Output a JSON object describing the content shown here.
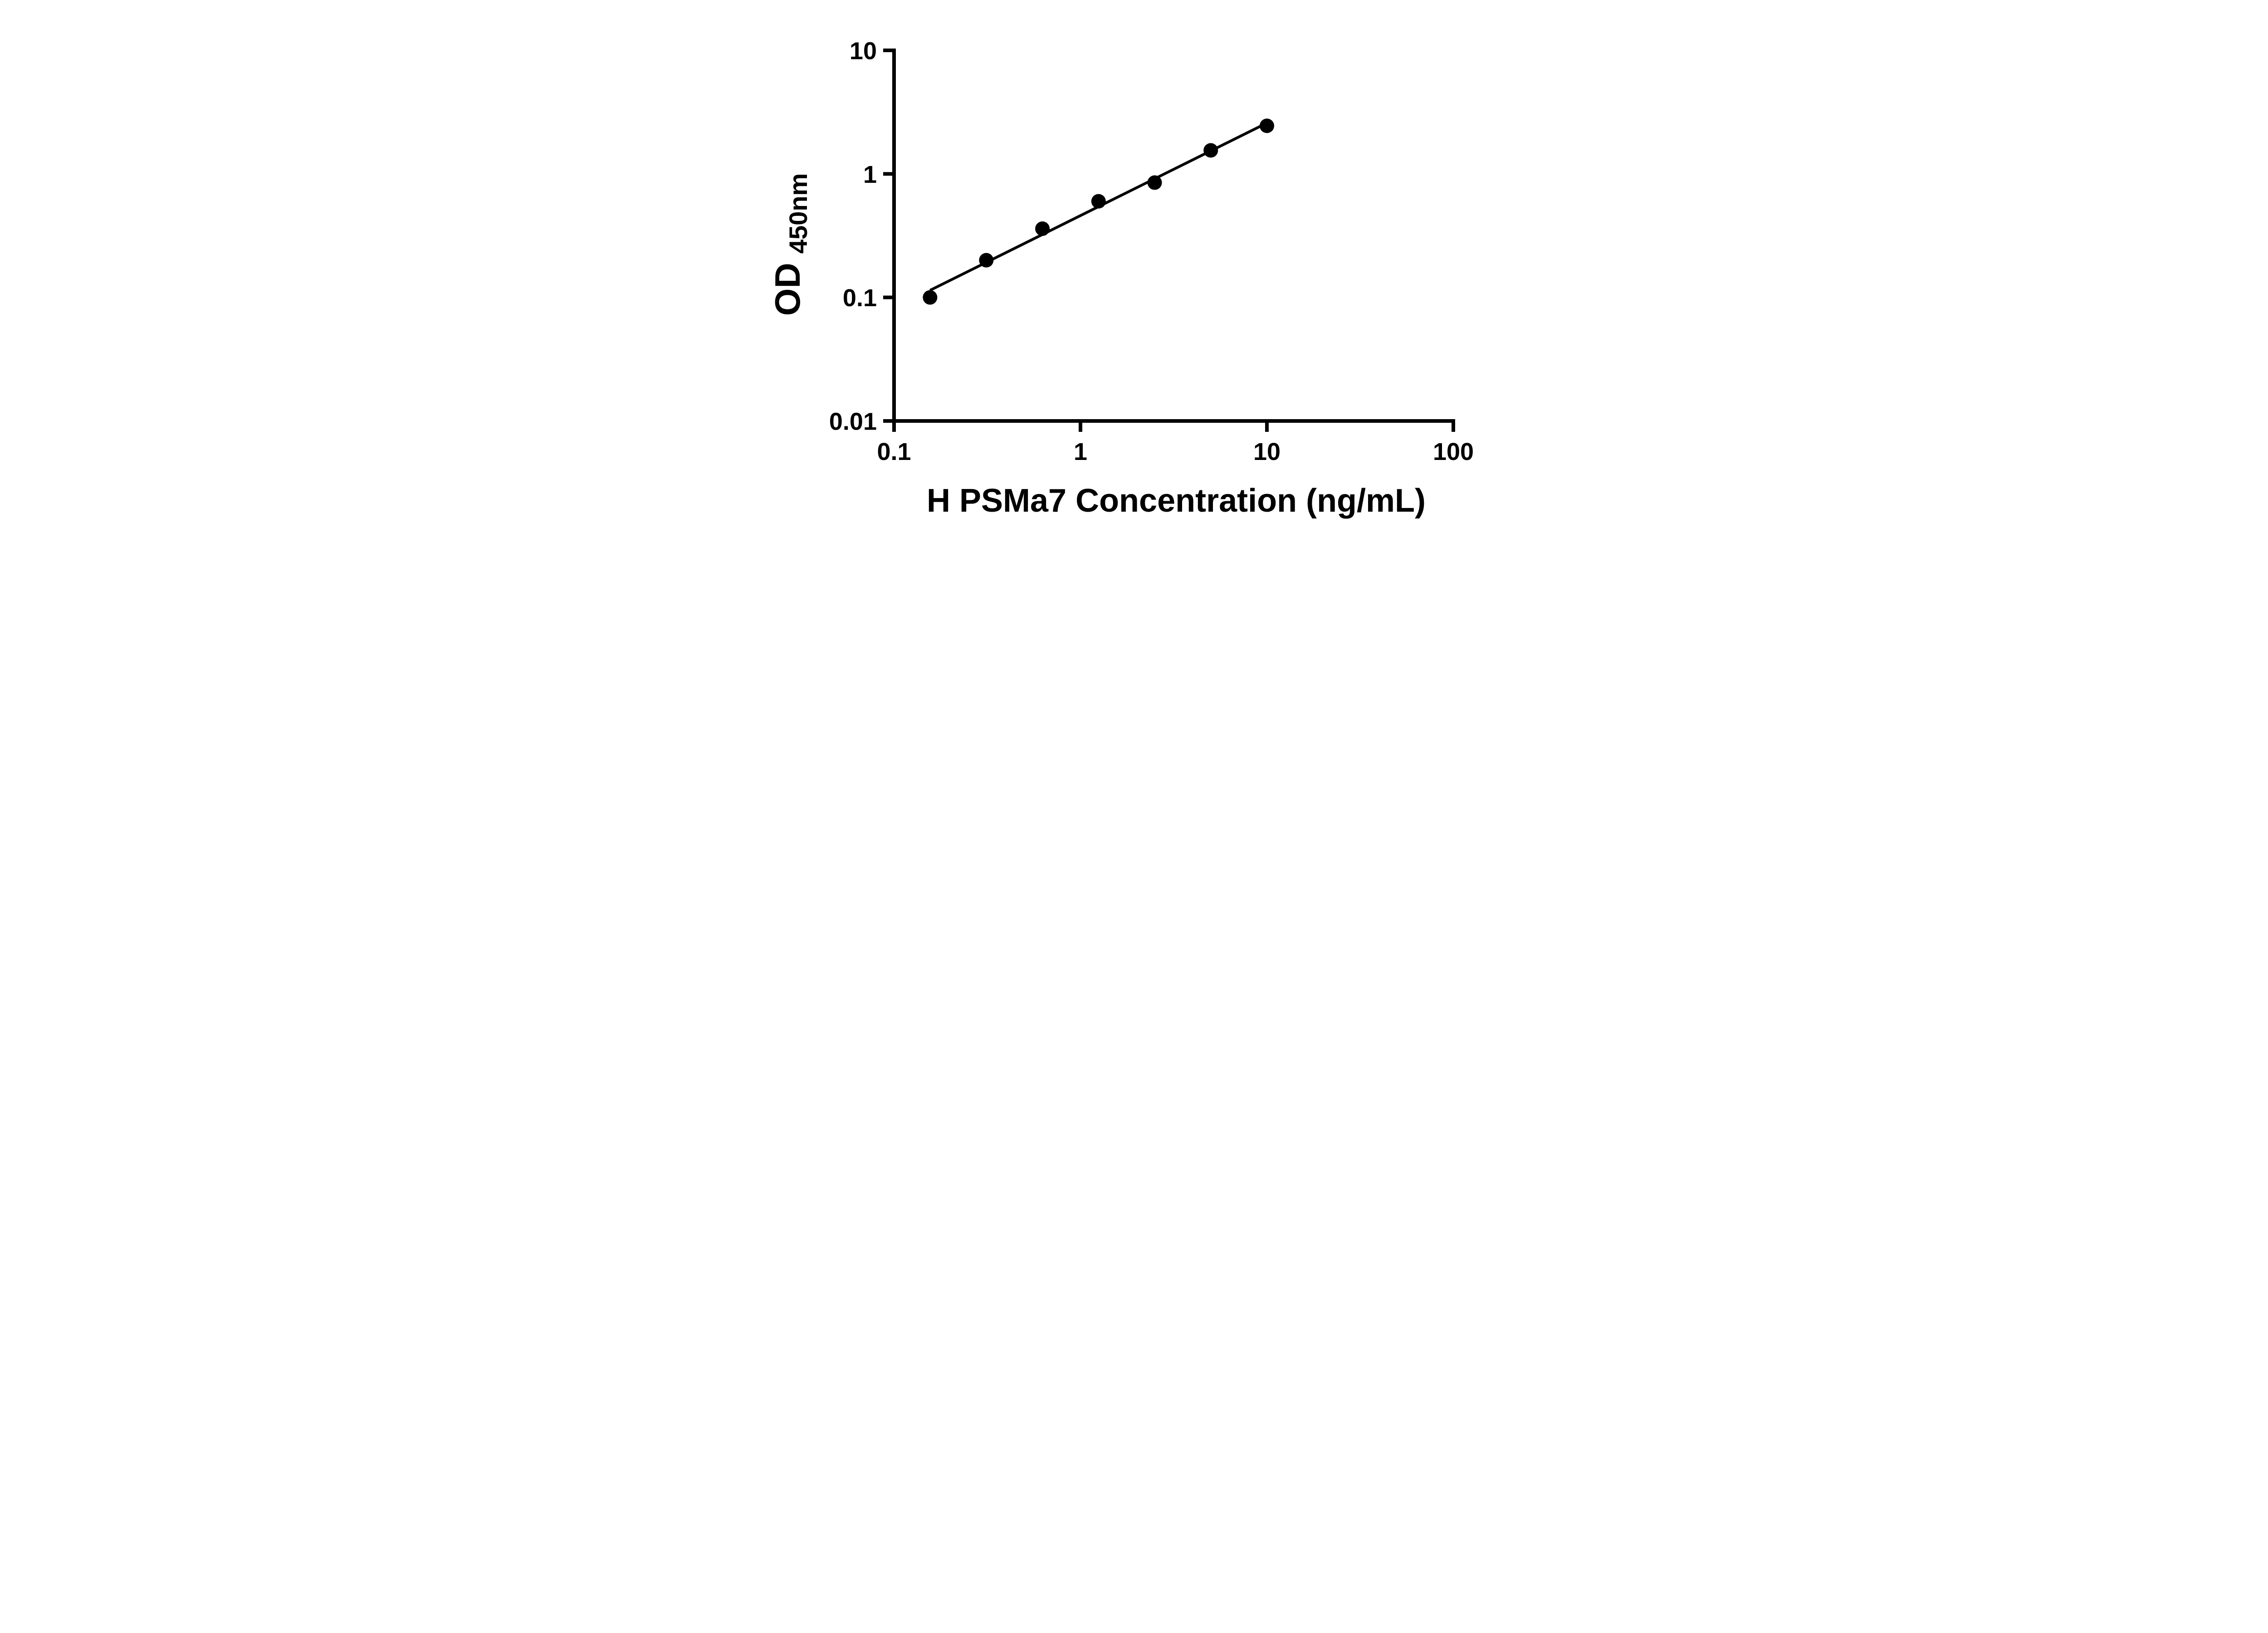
{
  "chart_data": {
    "type": "scatter",
    "title": "",
    "xlabel": "H PSMa7 Concentration (ng/mL)",
    "ylabel": "OD450nm",
    "ylabel_main": "OD",
    "ylabel_sub": "450nm",
    "x_scale": "log",
    "y_scale": "log",
    "xlim": [
      0.1,
      100
    ],
    "ylim": [
      0.01,
      10
    ],
    "x_ticks": [
      0.1,
      1,
      10,
      100
    ],
    "x_tick_labels": [
      "0.1",
      "1",
      "10",
      "100"
    ],
    "y_ticks": [
      0.01,
      0.1,
      1,
      10
    ],
    "y_tick_labels": [
      "0.01",
      "0.1",
      "1",
      "10"
    ],
    "x": [
      0.156,
      0.3125,
      0.625,
      1.25,
      2.5,
      5,
      10
    ],
    "y": [
      0.1,
      0.2,
      0.36,
      0.6,
      0.85,
      1.55,
      2.45
    ],
    "trendline": true,
    "grid": false,
    "legend": null,
    "marker_color": "#000000",
    "line_color": "#000000",
    "axis_color": "#000000",
    "background_color": "#ffffff"
  }
}
